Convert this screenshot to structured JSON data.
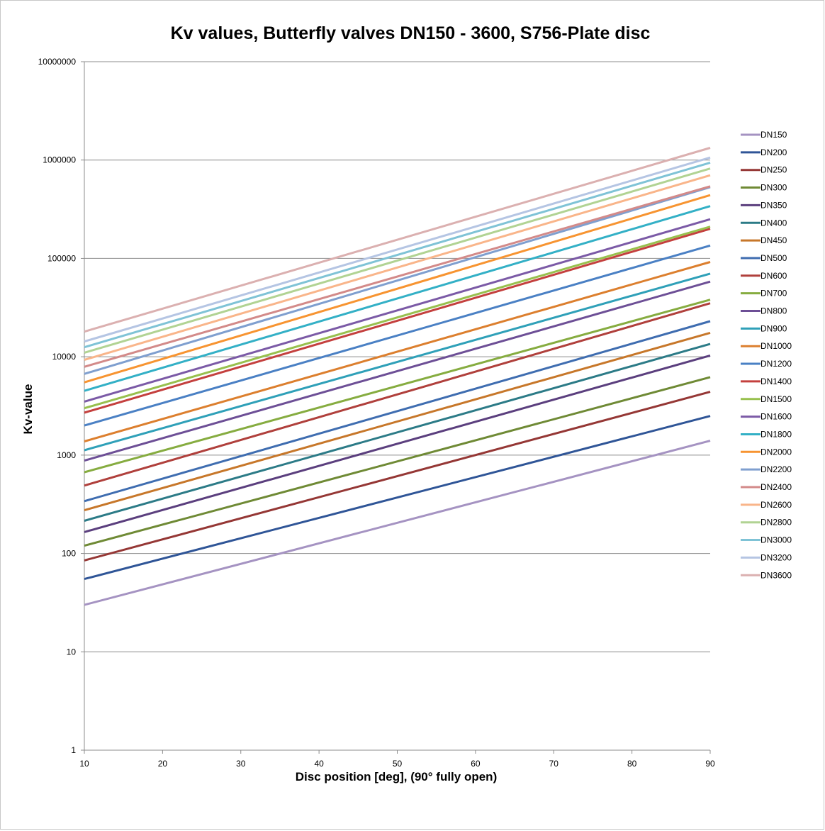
{
  "chart_data": {
    "type": "line",
    "title": "Kv values, Butterfly valves DN150 - 3600, S756-Plate disc",
    "xlabel": "Disc position [deg], (90° fully open)",
    "ylabel": "Kv-value",
    "xlim": [
      10,
      90
    ],
    "ylim": [
      1,
      10000000
    ],
    "yscale": "log",
    "x_ticks": [
      "10",
      "20",
      "30",
      "40",
      "50",
      "60",
      "70",
      "80",
      "90"
    ],
    "y_ticks": [
      "1",
      "10",
      "100",
      "1000",
      "10000",
      "100000",
      "1000000",
      "10000000"
    ],
    "grid": "horizontal",
    "legend_position": "right",
    "x": [
      10,
      90
    ],
    "series": [
      {
        "name": "DN150",
        "color": "#a593c2",
        "values": [
          30,
          1400
        ]
      },
      {
        "name": "DN200",
        "color": "#2f5597",
        "values": [
          55,
          2500
        ]
      },
      {
        "name": "DN250",
        "color": "#953735",
        "values": [
          85,
          4400
        ]
      },
      {
        "name": "DN300",
        "color": "#6f8a35",
        "values": [
          120,
          6200
        ]
      },
      {
        "name": "DN350",
        "color": "#5b3f7e",
        "values": [
          165,
          10300
        ]
      },
      {
        "name": "DN400",
        "color": "#2c7b87",
        "values": [
          215,
          13500
        ]
      },
      {
        "name": "DN450",
        "color": "#c7772a",
        "values": [
          275,
          17500
        ]
      },
      {
        "name": "DN500",
        "color": "#3f6db0",
        "values": [
          340,
          23000
        ]
      },
      {
        "name": "DN600",
        "color": "#b0403c",
        "values": [
          490,
          35000
        ]
      },
      {
        "name": "DN700",
        "color": "#86ac40",
        "values": [
          670,
          38000
        ]
      },
      {
        "name": "DN800",
        "color": "#6d4f96",
        "values": [
          880,
          58000
        ]
      },
      {
        "name": "DN900",
        "color": "#2fa0b8",
        "values": [
          1120,
          70000
        ]
      },
      {
        "name": "DN1000",
        "color": "#dc7f2e",
        "values": [
          1380,
          92000
        ]
      },
      {
        "name": "DN1200",
        "color": "#4a80c4",
        "values": [
          2000,
          135000
        ]
      },
      {
        "name": "DN1400",
        "color": "#c4403e",
        "values": [
          2700,
          200000
        ]
      },
      {
        "name": "DN1500",
        "color": "#98c04e",
        "values": [
          3000,
          210000
        ]
      },
      {
        "name": "DN1600",
        "color": "#7b5aa6",
        "values": [
          3500,
          250000
        ]
      },
      {
        "name": "DN1800",
        "color": "#33b0c6",
        "values": [
          4500,
          340000
        ]
      },
      {
        "name": "DN2000",
        "color": "#f79431",
        "values": [
          5500,
          440000
        ]
      },
      {
        "name": "DN2200",
        "color": "#7f9fcf",
        "values": [
          6700,
          530000
        ]
      },
      {
        "name": "DN2400",
        "color": "#d38a89",
        "values": [
          7900,
          540000
        ]
      },
      {
        "name": "DN2600",
        "color": "#f9b58a",
        "values": [
          9300,
          700000
        ]
      },
      {
        "name": "DN2800",
        "color": "#b1d393",
        "values": [
          11000,
          820000
        ]
      },
      {
        "name": "DN3000",
        "color": "#7fc3d6",
        "values": [
          12500,
          940000
        ]
      },
      {
        "name": "DN3200",
        "color": "#b5c5e3",
        "values": [
          14300,
          1060000
        ]
      },
      {
        "name": "DN3600",
        "color": "#dbb0b0",
        "values": [
          18000,
          1330000
        ]
      }
    ]
  }
}
